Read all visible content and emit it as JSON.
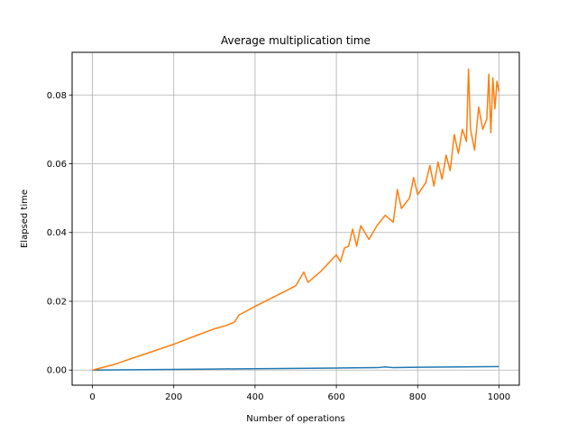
{
  "chart_data": {
    "type": "line",
    "title": "Average multiplication time",
    "xlabel": "Number of operations",
    "ylabel": "Elapsed time",
    "xlim": [
      -50,
      1050
    ],
    "ylim": [
      -0.0044,
      0.0924
    ],
    "xticks": [
      0,
      200,
      400,
      600,
      800,
      1000
    ],
    "xtick_labels": [
      "0",
      "200",
      "400",
      "600",
      "800",
      "1000"
    ],
    "yticks": [
      0.0,
      0.02,
      0.04,
      0.06,
      0.08
    ],
    "ytick_labels": [
      "0.00",
      "0.02",
      "0.04",
      "0.06",
      "0.08"
    ],
    "grid": true,
    "series": [
      {
        "color": "#1f77b4",
        "x": [
          0,
          100,
          200,
          300,
          400,
          500,
          600,
          700,
          720,
          740,
          800,
          900,
          1000
        ],
        "y": [
          0.0,
          0.0001,
          0.0002,
          0.0003,
          0.0004,
          0.0005,
          0.0006,
          0.0007,
          0.0009,
          0.0007,
          0.0008,
          0.0009,
          0.001
        ]
      },
      {
        "color": "#ff7f0e",
        "x": [
          0,
          50,
          100,
          150,
          200,
          250,
          300,
          330,
          350,
          360,
          400,
          450,
          500,
          520,
          530,
          560,
          580,
          600,
          610,
          620,
          630,
          640,
          650,
          660,
          680,
          700,
          720,
          740,
          750,
          760,
          780,
          790,
          800,
          820,
          830,
          840,
          850,
          860,
          870,
          880,
          890,
          900,
          910,
          920,
          925,
          930,
          940,
          950,
          960,
          970,
          975,
          980,
          985,
          990,
          995,
          1000
        ],
        "y": [
          0.0,
          0.0015,
          0.0035,
          0.0055,
          0.0075,
          0.0098,
          0.012,
          0.013,
          0.014,
          0.016,
          0.0185,
          0.0215,
          0.0245,
          0.0285,
          0.0255,
          0.0285,
          0.031,
          0.0335,
          0.0315,
          0.0355,
          0.036,
          0.041,
          0.036,
          0.042,
          0.038,
          0.042,
          0.045,
          0.043,
          0.0525,
          0.047,
          0.05,
          0.056,
          0.051,
          0.0545,
          0.0595,
          0.0535,
          0.0605,
          0.0555,
          0.0625,
          0.058,
          0.0685,
          0.063,
          0.07,
          0.0665,
          0.0875,
          0.07,
          0.064,
          0.0765,
          0.07,
          0.073,
          0.086,
          0.069,
          0.085,
          0.076,
          0.084,
          0.081
        ]
      }
    ]
  }
}
